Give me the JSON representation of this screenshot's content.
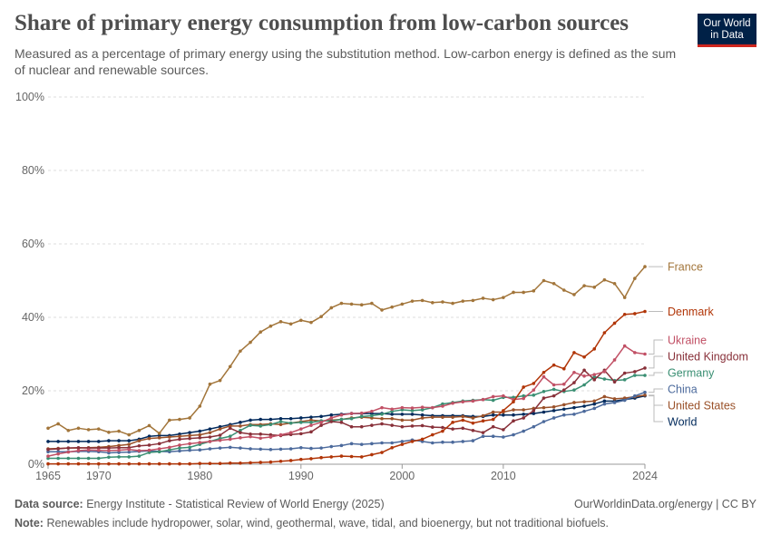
{
  "header": {
    "title": "Share of primary energy consumption from low-carbon sources",
    "subtitle": "Measured as a percentage of primary energy using the substitution method. Low-carbon energy is defined as the sum of nuclear and renewable sources.",
    "logo_line1": "Our World",
    "logo_line2": "in Data"
  },
  "footer": {
    "source_label": "Data source:",
    "source_text": "Energy Institute - Statistical Review of World Energy (2025)",
    "url_text": "OurWorldinData.org/energy | CC BY",
    "note_label": "Note:",
    "note_text": "Renewables include hydropower, solar, wind, geothermal, wave, tidal, and bioenergy, but not traditional biofuels."
  },
  "colors": {
    "axis": "#666666",
    "grid": "#dddddd",
    "tick_text": "#666666"
  },
  "chart_data": {
    "type": "line",
    "xlim": [
      1965,
      2024
    ],
    "ylim": [
      0,
      100
    ],
    "y_ticks": [
      0,
      20,
      40,
      60,
      80,
      100
    ],
    "y_tick_labels": [
      "0%",
      "20%",
      "40%",
      "60%",
      "80%",
      "100%"
    ],
    "x_ticks": [
      1965,
      1970,
      1980,
      1990,
      2000,
      2010,
      2024
    ],
    "x_tick_labels": [
      "1965",
      "1970",
      "1980",
      "1990",
      "2000",
      "2010",
      "2024"
    ],
    "grid": "horizontal dashed",
    "legend": "right, line-end labels",
    "x": [
      1965,
      1966,
      1967,
      1968,
      1969,
      1970,
      1971,
      1972,
      1973,
      1974,
      1975,
      1976,
      1977,
      1978,
      1979,
      1980,
      1981,
      1982,
      1983,
      1984,
      1985,
      1986,
      1987,
      1988,
      1989,
      1990,
      1991,
      1992,
      1993,
      1994,
      1995,
      1996,
      1997,
      1998,
      1999,
      2000,
      2001,
      2002,
      2003,
      2004,
      2005,
      2006,
      2007,
      2008,
      2009,
      2010,
      2011,
      2012,
      2013,
      2014,
      2015,
      2016,
      2017,
      2018,
      2019,
      2020,
      2021,
      2022,
      2023,
      2024
    ],
    "series": [
      {
        "name": "France",
        "color": "#a2753a",
        "values": [
          9.8,
          11,
          9.2,
          9.8,
          9.4,
          9.6,
          8.7,
          9,
          8,
          9.2,
          10.5,
          8.4,
          12,
          12.2,
          12.6,
          15.8,
          21.8,
          22.8,
          26.6,
          30.8,
          33.2,
          36,
          37.6,
          38.8,
          38.2,
          39.2,
          38.6,
          40.2,
          42.6,
          43.8,
          43.6,
          43.4,
          43.8,
          42,
          42.8,
          43.6,
          44.4,
          44.6,
          44,
          44.2,
          43.8,
          44.4,
          44.6,
          45.2,
          44.8,
          45.4,
          46.8,
          46.8,
          47.2,
          50,
          49.2,
          47.4,
          46.2,
          48.6,
          48.2,
          50.2,
          49.2,
          45.4,
          50.6,
          53.8
        ]
      },
      {
        "name": "Denmark",
        "color": "#b13507",
        "values": [
          0.1,
          0.1,
          0.1,
          0.1,
          0.1,
          0.1,
          0.1,
          0.1,
          0.1,
          0.1,
          0.1,
          0.1,
          0.1,
          0.1,
          0.1,
          0.2,
          0.2,
          0.2,
          0.3,
          0.3,
          0.4,
          0.5,
          0.6,
          0.8,
          1,
          1.3,
          1.5,
          1.8,
          2,
          2.2,
          2.1,
          2,
          2.6,
          3.2,
          4.5,
          5.4,
          6.2,
          6.8,
          8,
          9,
          11.4,
          12,
          11.2,
          11.8,
          12.2,
          14.6,
          17,
          21,
          22,
          25,
          27,
          26,
          30.4,
          29.2,
          31.4,
          35.8,
          38.4,
          40.8,
          41,
          41.6
        ]
      },
      {
        "name": "Ukraine",
        "color": "#c15065",
        "values": [
          2.2,
          2.8,
          3.3,
          3.7,
          3.9,
          3.8,
          3.7,
          3.8,
          4,
          3.7,
          3.8,
          4.2,
          4.6,
          5.2,
          5.6,
          5.9,
          6.2,
          6.5,
          6.8,
          7.2,
          7.5,
          7.1,
          7.4,
          8,
          8.6,
          9.6,
          10.6,
          11.4,
          12.6,
          13.4,
          13.8,
          13.9,
          14.4,
          15.4,
          15,
          15.4,
          15.3,
          15.5,
          15.4,
          15.8,
          16.6,
          17,
          17.2,
          17.6,
          18.4,
          18.6,
          17.6,
          17.9,
          20.2,
          23.8,
          21.6,
          21.8,
          25,
          24,
          24.4,
          25.2,
          28.4,
          32.2,
          30.4,
          30
        ]
      },
      {
        "name": "United Kingdom",
        "color": "#883039",
        "values": [
          4,
          4.2,
          4.4,
          4.5,
          4.4,
          4.4,
          4.4,
          4.5,
          4.5,
          5,
          5.2,
          5.6,
          6.4,
          6.8,
          7,
          7.2,
          7.4,
          7.9,
          9.8,
          8.6,
          8.2,
          8.2,
          8,
          7.8,
          8.1,
          8.3,
          8.8,
          10.6,
          11.6,
          11.4,
          10.2,
          10.2,
          10.6,
          11,
          10.6,
          10.2,
          10.4,
          10.5,
          10.1,
          10,
          9.6,
          9.8,
          9.2,
          8.6,
          10.2,
          9.4,
          11.8,
          12.6,
          14.6,
          18,
          18.6,
          20.2,
          22.2,
          25.6,
          23,
          25.6,
          22.4,
          24.8,
          25.2,
          26.2
        ]
      },
      {
        "name": "Germany",
        "color": "#3a8f73",
        "values": [
          1.6,
          1.6,
          1.6,
          1.6,
          1.6,
          1.6,
          1.9,
          2,
          2,
          2.2,
          3.2,
          3.4,
          3.9,
          4.4,
          4.6,
          5.4,
          6.2,
          7,
          7.6,
          9.2,
          10.6,
          10.4,
          10.8,
          11.6,
          11.2,
          11.4,
          11.4,
          11.8,
          11.8,
          12.2,
          12.4,
          13,
          13.2,
          13.6,
          14.4,
          14.8,
          14.6,
          14.8,
          15.4,
          16.4,
          16.8,
          17.2,
          17.4,
          17.6,
          17.4,
          18.2,
          18.2,
          18.6,
          18.8,
          19.8,
          20.4,
          19.8,
          20.2,
          21.6,
          23.8,
          23.2,
          22.8,
          23,
          24.2,
          24.2
        ]
      },
      {
        "name": "China",
        "color": "#4c6a9c",
        "values": [
          3.4,
          3.4,
          3.4,
          3.5,
          3.5,
          3.4,
          3.1,
          3.2,
          3.3,
          3.5,
          3.6,
          3.5,
          3.4,
          3.6,
          3.8,
          3.9,
          4.2,
          4.4,
          4.6,
          4.4,
          4.2,
          4.1,
          4,
          4.1,
          4.2,
          4.5,
          4.3,
          4.4,
          4.8,
          5.1,
          5.6,
          5.4,
          5.6,
          5.8,
          5.8,
          6.2,
          6.6,
          6.2,
          5.8,
          6,
          6,
          6.2,
          6.4,
          7.6,
          7.6,
          7.4,
          8,
          9,
          10.2,
          11.6,
          12.6,
          13.4,
          13.6,
          14.4,
          15.2,
          16.4,
          16.8,
          17.4,
          18.6,
          19.6
        ]
      },
      {
        "name": "United States",
        "color": "#9a5129",
        "values": [
          4.2,
          4.3,
          4.4,
          4.4,
          4.5,
          4.6,
          4.8,
          5.1,
          5.4,
          6.4,
          7,
          7.2,
          7.4,
          7.6,
          7.8,
          8,
          8.6,
          9.6,
          10.4,
          10.4,
          10.8,
          10.8,
          11,
          10.8,
          11.2,
          11.6,
          12,
          11.8,
          12,
          12.2,
          12.6,
          12.8,
          12.6,
          12.4,
          12.4,
          12,
          12,
          12.6,
          12.8,
          12.8,
          12.8,
          13,
          12.6,
          13.2,
          14.2,
          14.2,
          14.8,
          14.8,
          15.2,
          15.4,
          15.6,
          16.2,
          16.8,
          17,
          17.2,
          18.4,
          17.8,
          18,
          18.4,
          18.8
        ]
      },
      {
        "name": "World",
        "color": "#00295b",
        "values": [
          6.2,
          6.2,
          6.2,
          6.2,
          6.2,
          6.2,
          6.4,
          6.4,
          6.4,
          6.8,
          7.6,
          7.8,
          7.8,
          8.2,
          8.6,
          9,
          9.6,
          10.2,
          10.8,
          11.4,
          12,
          12.2,
          12.2,
          12.4,
          12.4,
          12.6,
          12.8,
          13,
          13.4,
          13.6,
          13.8,
          13.8,
          13.8,
          13.8,
          13.6,
          13.6,
          13.6,
          13.4,
          13.2,
          13.2,
          13.2,
          13.2,
          13,
          13,
          13.4,
          13.4,
          13.4,
          13.6,
          13.8,
          14.2,
          14.6,
          15,
          15.4,
          15.8,
          16.4,
          17.2,
          17.2,
          17.6,
          18,
          18.6
        ]
      }
    ],
    "label_order": [
      "France",
      "Denmark",
      "Ukraine",
      "United Kingdom",
      "Germany",
      "China",
      "United States",
      "World"
    ]
  }
}
